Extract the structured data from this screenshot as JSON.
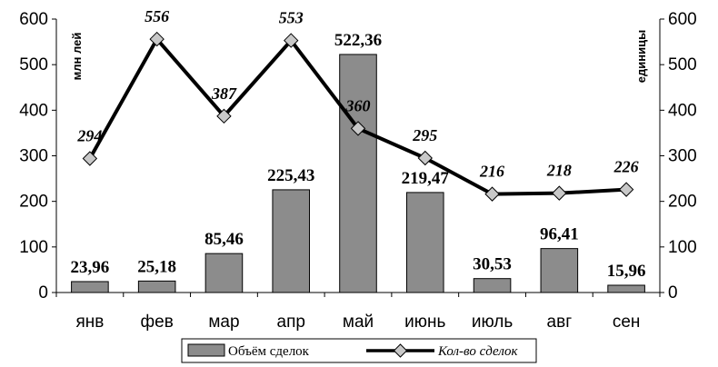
{
  "chart_data": {
    "type": "bar",
    "categories": [
      "янв",
      "фев",
      "мар",
      "апр",
      "май",
      "июнь",
      "июль",
      "авг",
      "сен"
    ],
    "series": [
      {
        "name": "Объём сделок",
        "type": "bar",
        "axis": "left",
        "color": "#8c8c8c",
        "values": [
          23.96,
          25.18,
          85.46,
          225.43,
          522.36,
          219.47,
          30.53,
          96.41,
          15.96
        ],
        "labels": [
          "23,96",
          "25,18",
          "85,46",
          "225,43",
          "522,36",
          "219,47",
          "30,53",
          "96,41",
          "15,96"
        ]
      },
      {
        "name": "Кол-во сделок",
        "type": "line",
        "axis": "right",
        "color": "#000000",
        "marker_color": "#c8c8c8",
        "values": [
          294,
          556,
          387,
          553,
          360,
          295,
          216,
          218,
          226
        ],
        "labels": [
          "294",
          "556",
          "387",
          "553",
          "360",
          "295",
          "216",
          "218",
          "226"
        ]
      }
    ],
    "ylabel_left": "млн лей",
    "ylabel_right": "единицы",
    "ylim": [
      0,
      600
    ],
    "yticks": [
      "0",
      "100",
      "200",
      "300",
      "400",
      "500",
      "600"
    ],
    "grid": false,
    "legend_position": "bottom"
  }
}
